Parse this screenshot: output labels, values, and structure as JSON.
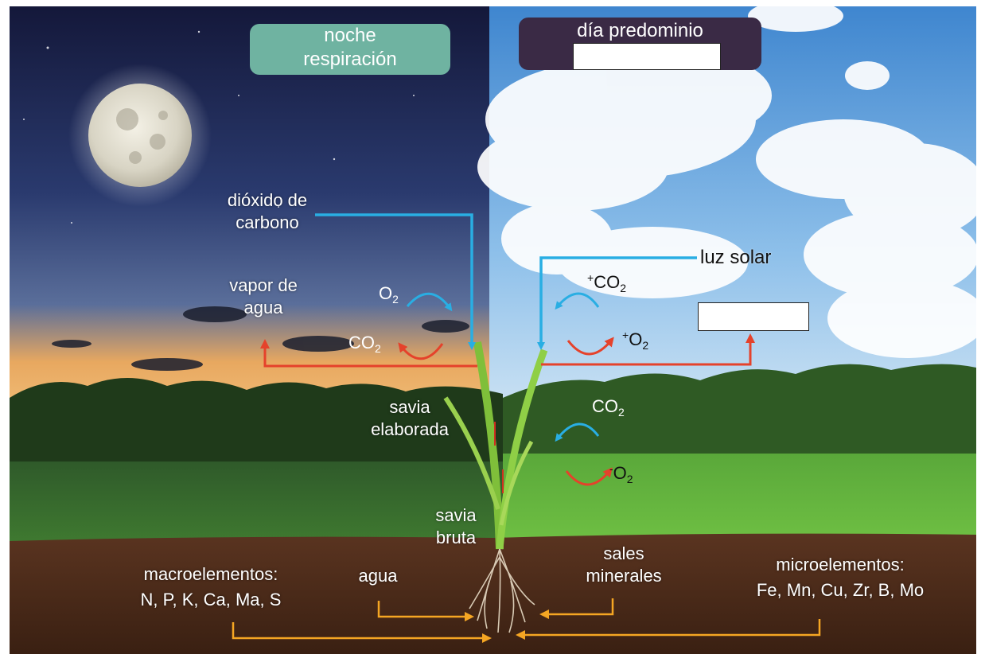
{
  "headers": {
    "night": {
      "line1": "noche",
      "line2": "respiración"
    },
    "day": {
      "line1": "día predominio",
      "blank": ""
    }
  },
  "labels": {
    "carbon_dioxide": {
      "line1": "dióxido de",
      "line2": "carbono"
    },
    "water_vapor": {
      "line1": "vapor de",
      "line2": "agua"
    },
    "sunlight": "luz solar",
    "elaborated_sap": {
      "line1": "savia",
      "line2": "elaborada"
    },
    "raw_sap": {
      "line1": "savia",
      "line2": "bruta"
    },
    "water": "agua",
    "mineral_salts": {
      "line1": "sales",
      "line2": "minerales"
    },
    "macroelements": {
      "line1": "macroelementos:",
      "line2": "N, P, K, Ca, Ma, S"
    },
    "microelements": {
      "line1": "microelementos:",
      "line2": "Fe, Mn, Cu, Zr, B, Mo"
    },
    "day_blank": ""
  },
  "chem": {
    "o2_night": {
      "base": "O",
      "sub": "2"
    },
    "co2_night": {
      "base": "CO",
      "sub": "2"
    },
    "co2_day_plus": {
      "sup": "+",
      "base": "CO",
      "sub": "2"
    },
    "o2_day_plus": {
      "sup": "+",
      "base": "O",
      "sub": "2"
    },
    "co2_day_resp": {
      "base": "CO",
      "sub": "2"
    },
    "o2_day_minus": {
      "sup": "-",
      "base": "O",
      "sub": "2"
    }
  },
  "colors": {
    "night_pill": "#6fb3a1",
    "day_pill": "#3a2a45",
    "arrow_blue": "#29aee3",
    "arrow_red": "#e5422b",
    "arrow_orange": "#f5a623"
  }
}
